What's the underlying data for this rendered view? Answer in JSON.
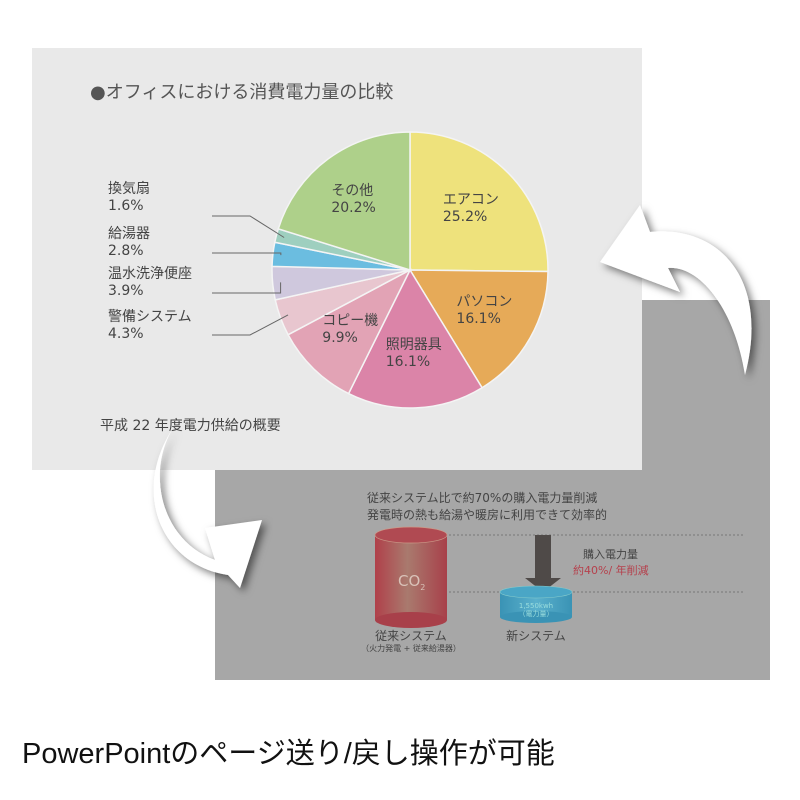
{
  "front_slide": {
    "title": "●オフィスにおける消費電力量の比較",
    "footer": "平成 22 年度電力供給の概要"
  },
  "chart_data": {
    "type": "pie",
    "title": "●オフィスにおける消費電力量の比較",
    "start": "top",
    "direction": "clockwise",
    "slices": [
      {
        "label": "エアコン",
        "value": 25.2,
        "display": "25.2%",
        "color": "#eee27c"
      },
      {
        "label": "パソコン",
        "value": 16.1,
        "display": "16.1%",
        "color": "#e6aa58"
      },
      {
        "label": "照明器具",
        "value": 16.1,
        "display": "16.1%",
        "color": "#db84a8"
      },
      {
        "label": "コピー機",
        "value": 9.9,
        "display": "9.9%",
        "color": "#e2a3b5"
      },
      {
        "label": "警備システム",
        "value": 4.3,
        "display": "4.3%",
        "color": "#e8c6cf"
      },
      {
        "label": "温水洗浄便座",
        "value": 3.9,
        "display": "3.9%",
        "color": "#cfc8dd"
      },
      {
        "label": "給湯器",
        "value": 2.8,
        "display": "2.8%",
        "color": "#6bbde0"
      },
      {
        "label": "換気扇",
        "value": 1.6,
        "display": "1.6%",
        "color": "#9ecfbf"
      },
      {
        "label": "その他",
        "value": 20.2,
        "display": "20.2%",
        "color": "#aed08a"
      }
    ]
  },
  "back_slide": {
    "line1": "従来システム比で約70%の購入電力量削減",
    "line2": "発電時の熱も給湯や暖房に利用できて効率的",
    "co2": "CO",
    "co2_sub": "2",
    "old_label": "従来システム",
    "old_sub": "（火力発電 + 従来給湯器）",
    "new_label": "新システム",
    "new_value": "1,550kwh",
    "new_value_sub": "（電力量）",
    "purchase_label": "購入電力量",
    "purchase_value": "約40%/ 年削減",
    "accent": "#b5404c"
  },
  "caption": "PowerPointのページ送り/戻し操作が可能"
}
